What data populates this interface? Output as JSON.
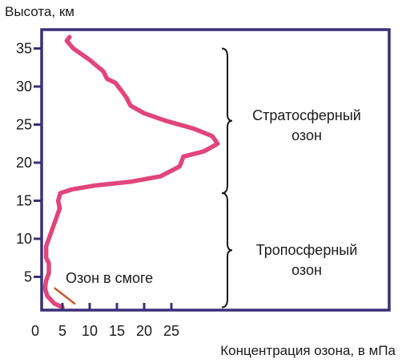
{
  "chart_data": {
    "type": "line",
    "ylabel": "Высота, км",
    "xlabel": "Концентрация озона, в мПа",
    "xlim": [
      0,
      35
    ],
    "ylim": [
      0,
      37
    ],
    "x_ticks": [
      {
        "value": 0,
        "label": "0"
      },
      {
        "value": 5,
        "label": "5"
      },
      {
        "value": 10,
        "label": "10"
      },
      {
        "value": 15,
        "label": "15"
      },
      {
        "value": 20,
        "label": "20"
      },
      {
        "value": 25,
        "label": "25"
      }
    ],
    "y_ticks": [
      {
        "value": 5,
        "label": "5"
      },
      {
        "value": 10,
        "label": "10"
      },
      {
        "value": 15,
        "label": "15"
      },
      {
        "value": 20,
        "label": "20"
      },
      {
        "value": 25,
        "label": "25"
      },
      {
        "value": 30,
        "label": "30"
      },
      {
        "value": 35,
        "label": "35"
      }
    ],
    "series": [
      {
        "name": "",
        "color": "#e0457b",
        "points": [
          [
            5.0,
            1.0
          ],
          [
            3.5,
            1.5
          ],
          [
            2.2,
            2.5
          ],
          [
            1.8,
            3.5
          ],
          [
            2.0,
            4.5
          ],
          [
            2.5,
            5.5
          ],
          [
            2.5,
            6.8
          ],
          [
            2.0,
            7.5
          ],
          [
            2.0,
            8.0
          ],
          [
            2.0,
            9.0
          ],
          [
            2.5,
            10.0
          ],
          [
            3.0,
            11.0
          ],
          [
            3.5,
            12.0
          ],
          [
            4.0,
            13.0
          ],
          [
            4.5,
            14.0
          ],
          [
            4.2,
            15.0
          ],
          [
            4.6,
            16.0
          ],
          [
            6.8,
            16.5
          ],
          [
            11.0,
            17.0
          ],
          [
            17.5,
            17.5
          ],
          [
            23.0,
            18.2
          ],
          [
            26.5,
            19.5
          ],
          [
            26.8,
            20.0
          ],
          [
            27.2,
            20.8
          ],
          [
            31.0,
            21.5
          ],
          [
            33.5,
            22.5
          ],
          [
            32.5,
            23.5
          ],
          [
            29.0,
            24.5
          ],
          [
            24.0,
            25.5
          ],
          [
            20.0,
            26.5
          ],
          [
            17.5,
            27.5
          ],
          [
            16.8,
            28.5
          ],
          [
            15.8,
            29.5
          ],
          [
            14.7,
            30.5
          ],
          [
            13.2,
            31.0
          ],
          [
            12.5,
            32.0
          ],
          [
            10.0,
            33.5
          ],
          [
            7.0,
            35.0
          ],
          [
            5.8,
            36.0
          ],
          [
            6.3,
            36.5
          ]
        ]
      },
      {
        "name": "",
        "color": "#c65a2c",
        "points": [
          [
            3.6,
            3.5
          ],
          [
            7.2,
            1.5
          ]
        ]
      }
    ],
    "annotations": [
      {
        "text_lines": [
          "Стратосферный",
          "озон"
        ],
        "y_range": [
          16,
          35
        ]
      },
      {
        "text_lines": [
          "Тропосферный",
          "озон"
        ],
        "y_range": [
          1,
          16
        ]
      },
      {
        "text_lines": [
          "Озон в смоге"
        ],
        "y_range": [
          2,
          6
        ]
      }
    ],
    "grid": false,
    "legend": "none"
  }
}
